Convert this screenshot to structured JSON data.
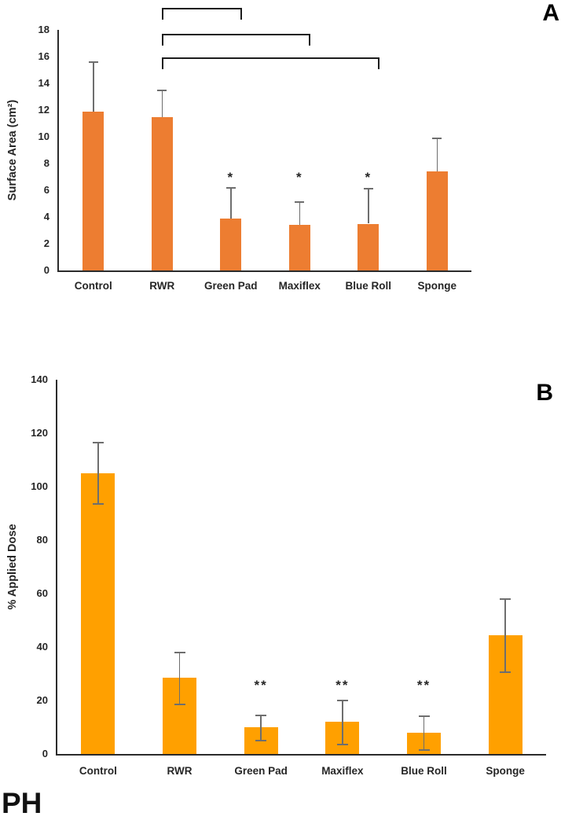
{
  "page": {
    "background": "#ffffff",
    "footer_text": "PH"
  },
  "chart_data": [
    {
      "id": "A",
      "type": "bar",
      "panel_label": "A",
      "title": "",
      "xlabel": "",
      "ylabel": "Surface Area (cm²)",
      "categories": [
        "Control",
        "RWR",
        "Green Pad",
        "Maxiflex",
        "Blue Roll",
        "Sponge"
      ],
      "values": [
        11.9,
        11.5,
        3.9,
        3.4,
        3.5,
        7.4
      ],
      "errors_up": [
        3.7,
        2.0,
        2.3,
        1.7,
        2.6,
        2.5
      ],
      "errors_down": [
        0,
        0,
        0,
        0,
        0,
        0
      ],
      "error_caps_bottom": false,
      "significance_labels": [
        "",
        "",
        "*",
        "*",
        "*",
        ""
      ],
      "significance_y": 7.0,
      "ylim": [
        0,
        18
      ],
      "ytick_step": 2,
      "ytick_labels": [
        "0",
        "2",
        "4",
        "6",
        "8",
        "10",
        "12",
        "14",
        "16",
        "18"
      ],
      "grid": false,
      "legend": null,
      "bar_color": "#ED7D31",
      "error_color": "#6e6e6e",
      "brackets": [
        {
          "from_category": "RWR",
          "to_category": "Green Pad"
        },
        {
          "from_category": "RWR",
          "to_category": "Maxiflex"
        },
        {
          "from_category": "RWR",
          "to_category": "Blue Roll"
        }
      ]
    },
    {
      "id": "B",
      "type": "bar",
      "panel_label": "B",
      "title": "",
      "xlabel": "",
      "ylabel": "% Applied Dose",
      "categories": [
        "Control",
        "RWR",
        "Green Pad",
        "Maxiflex",
        "Blue Roll",
        "Sponge"
      ],
      "values": [
        105,
        28.5,
        10,
        12,
        8,
        44.5
      ],
      "errors_up": [
        11.5,
        9.5,
        4.5,
        8,
        6,
        13.5
      ],
      "errors_down": [
        11.5,
        10,
        5,
        8.5,
        6.5,
        14
      ],
      "error_caps_bottom": true,
      "significance_labels": [
        "",
        "",
        "**",
        "**",
        "**",
        ""
      ],
      "significance_y": 26,
      "ylim": [
        0,
        140
      ],
      "ytick_step": 20,
      "ytick_labels": [
        "0",
        "20",
        "40",
        "60",
        "80",
        "100",
        "120",
        "140"
      ],
      "grid": false,
      "legend": null,
      "bar_color": "#FFA000",
      "error_color": "#6e6e6e",
      "brackets": []
    }
  ]
}
